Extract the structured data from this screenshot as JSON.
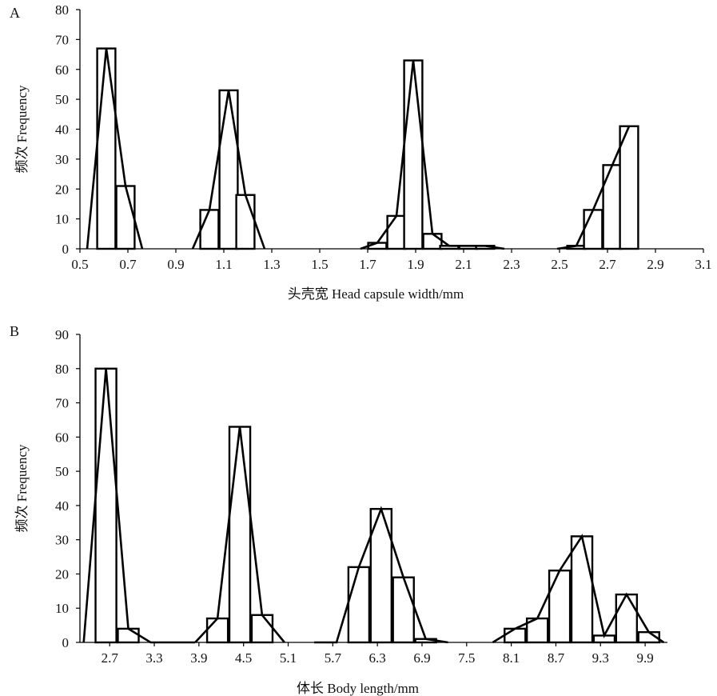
{
  "chart_data": [
    {
      "panel_label": "A",
      "type": "bar",
      "xlabel": "头壳宽 Head capsule width/mm",
      "ylabel": "频次 Frequency",
      "xlim": [
        0.5,
        3.1
      ],
      "ylim": [
        0,
        80
      ],
      "x_ticks": [
        "0.5",
        "0.7",
        "0.9",
        "1.1",
        "1.3",
        "1.5",
        "1.7",
        "1.9",
        "2.1",
        "2.3",
        "2.5",
        "2.7",
        "2.9",
        "3.1"
      ],
      "y_ticks": [
        "0",
        "10",
        "20",
        "30",
        "40",
        "50",
        "60",
        "70",
        "80"
      ],
      "bar_width": 0.076,
      "bars": [
        {
          "x": 0.61,
          "value": 67
        },
        {
          "x": 0.69,
          "value": 21
        },
        {
          "x": 1.04,
          "value": 13
        },
        {
          "x": 1.12,
          "value": 53
        },
        {
          "x": 1.19,
          "value": 18
        },
        {
          "x": 1.74,
          "value": 2
        },
        {
          "x": 1.82,
          "value": 11
        },
        {
          "x": 1.89,
          "value": 63
        },
        {
          "x": 1.97,
          "value": 5
        },
        {
          "x": 2.04,
          "value": 1
        },
        {
          "x": 2.12,
          "value": 1
        },
        {
          "x": 2.19,
          "value": 1
        },
        {
          "x": 2.57,
          "value": 1
        },
        {
          "x": 2.64,
          "value": 13
        },
        {
          "x": 2.72,
          "value": 28
        },
        {
          "x": 2.79,
          "value": 41
        }
      ],
      "series": [
        {
          "x": [
            0.53,
            0.61,
            0.69,
            0.76
          ],
          "values": [
            0,
            67,
            21,
            0
          ]
        },
        {
          "x": [
            0.97,
            1.04,
            1.12,
            1.19,
            1.27
          ],
          "values": [
            0,
            13,
            53,
            18,
            0
          ]
        },
        {
          "x": [
            1.67,
            1.74,
            1.82,
            1.89,
            1.97,
            2.04,
            2.12,
            2.19,
            2.27
          ],
          "values": [
            0,
            2,
            11,
            63,
            5,
            1,
            1,
            1,
            0
          ]
        },
        {
          "x": [
            2.49,
            2.57,
            2.64,
            2.72,
            2.79
          ],
          "values": [
            0,
            1,
            13,
            28,
            41
          ]
        }
      ]
    },
    {
      "panel_label": "B",
      "type": "bar",
      "xlabel": "体长 Body length/mm",
      "ylabel": "频次 Frequency",
      "xlim": [
        2.3,
        10.2
      ],
      "ylim": [
        0,
        90
      ],
      "x_ticks": [
        "2.7",
        "3.3",
        "3.9",
        "4.5",
        "5.1",
        "5.7",
        "6.3",
        "6.9",
        "7.5",
        "8.1",
        "8.7",
        "9.3",
        "9.9"
      ],
      "y_ticks": [
        "0",
        "10",
        "20",
        "30",
        "40",
        "50",
        "60",
        "70",
        "80",
        "90"
      ],
      "bar_width": 0.28,
      "bars": [
        {
          "x": 2.65,
          "value": 80
        },
        {
          "x": 2.95,
          "value": 4
        },
        {
          "x": 4.15,
          "value": 7
        },
        {
          "x": 4.45,
          "value": 63
        },
        {
          "x": 4.75,
          "value": 8
        },
        {
          "x": 6.05,
          "value": 22
        },
        {
          "x": 6.35,
          "value": 39
        },
        {
          "x": 6.65,
          "value": 19
        },
        {
          "x": 6.95,
          "value": 1
        },
        {
          "x": 8.15,
          "value": 4
        },
        {
          "x": 8.45,
          "value": 7
        },
        {
          "x": 8.75,
          "value": 21
        },
        {
          "x": 9.05,
          "value": 31
        },
        {
          "x": 9.35,
          "value": 2
        },
        {
          "x": 9.65,
          "value": 14
        },
        {
          "x": 9.95,
          "value": 3
        }
      ],
      "series": [
        {
          "x": [
            2.35,
            2.65,
            2.95,
            3.25,
            3.85
          ],
          "values": [
            0,
            80,
            4,
            0,
            0
          ]
        },
        {
          "x": [
            3.85,
            4.15,
            4.45,
            4.75,
            5.05
          ],
          "values": [
            0,
            7,
            63,
            8,
            0
          ]
        },
        {
          "x": [
            5.45,
            5.75,
            6.05,
            6.35,
            6.65,
            6.95,
            7.25
          ],
          "values": [
            0,
            0,
            22,
            39,
            19,
            1,
            0
          ]
        },
        {
          "x": [
            7.85,
            8.15,
            8.45,
            8.75,
            9.05,
            9.35,
            9.65,
            9.95,
            10.15
          ],
          "values": [
            0,
            4,
            7,
            21,
            31,
            2,
            14,
            3,
            0
          ]
        }
      ]
    }
  ]
}
